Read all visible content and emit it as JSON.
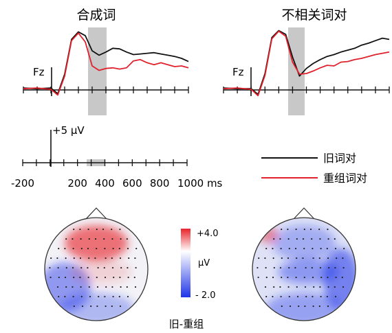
{
  "panels": [
    {
      "title": "合成词",
      "electrode": "Fz"
    },
    {
      "title": "不相关词对",
      "electrode": "Fz"
    }
  ],
  "colors": {
    "old": "#111111",
    "recombined": "#e0202a",
    "window": "#c8c8c8",
    "positive": "#e8232a",
    "negative": "#1f34e8"
  },
  "scale_bar": {
    "label": "+5 μV"
  },
  "time_axis": {
    "ticks": [
      "-200",
      "200",
      "400",
      "600",
      "800",
      "1000 ms"
    ]
  },
  "legend": {
    "old": "旧词对",
    "recombined": "重组词对"
  },
  "colorbar": {
    "max": "+4.0",
    "unit": "μV",
    "min": "- 2.0"
  },
  "topomap_caption": "旧-重组",
  "chart_data": [
    {
      "type": "line",
      "title": "合成词",
      "electrode": "Fz",
      "x_unit": "ms",
      "xlim": [
        -200,
        1000
      ],
      "shaded_window_ms": [
        300,
        420
      ],
      "series": [
        {
          "name": "旧词对",
          "x": [
            -200,
            -100,
            0,
            50,
            100,
            150,
            200,
            250,
            300,
            350,
            400,
            450,
            500,
            550,
            600,
            650,
            700,
            750,
            800,
            850,
            900,
            950,
            1000
          ],
          "y": [
            0.3,
            0.2,
            0.3,
            -0.6,
            2.5,
            8,
            9.2,
            8.6,
            6.2,
            5.5,
            6,
            6.6,
            6.5,
            6,
            5.6,
            5.7,
            5.8,
            5.9,
            5.7,
            5.5,
            5.3,
            5,
            4.5
          ]
        },
        {
          "name": "重组词对",
          "x": [
            -200,
            -100,
            0,
            50,
            100,
            150,
            200,
            250,
            300,
            350,
            400,
            450,
            500,
            550,
            600,
            650,
            700,
            750,
            800,
            850,
            900,
            950,
            1000
          ],
          "y": [
            0.2,
            0.3,
            0.1,
            -0.8,
            2.2,
            7.8,
            9,
            7.6,
            3.8,
            3.1,
            3.4,
            3.5,
            3.3,
            3.5,
            4.6,
            4.8,
            4.3,
            4.0,
            4.3,
            4.0,
            3.7,
            3.8,
            3.5
          ]
        }
      ]
    },
    {
      "type": "line",
      "title": "不相关词对",
      "electrode": "Fz",
      "x_unit": "ms",
      "xlim": [
        -200,
        1000
      ],
      "shaded_window_ms": [
        300,
        420
      ],
      "series": [
        {
          "name": "旧词对",
          "x": [
            -200,
            -100,
            0,
            50,
            100,
            150,
            200,
            250,
            300,
            350,
            400,
            450,
            500,
            550,
            600,
            650,
            700,
            750,
            800,
            850,
            900,
            950,
            1000
          ],
          "y": [
            0.3,
            0.2,
            0.2,
            -0.7,
            2.6,
            8.3,
            9.4,
            8.8,
            5.2,
            2.2,
            3.4,
            4.2,
            4.8,
            5.3,
            5.6,
            6,
            6.3,
            6.6,
            7.1,
            7.4,
            7.8,
            8.2,
            8.0
          ]
        },
        {
          "name": "重组词对",
          "x": [
            -200,
            -100,
            0,
            50,
            100,
            150,
            200,
            250,
            300,
            350,
            400,
            450,
            500,
            550,
            600,
            650,
            700,
            750,
            800,
            850,
            900,
            950,
            1000
          ],
          "y": [
            0.2,
            0.3,
            0.1,
            -0.9,
            2.3,
            8.1,
            9.3,
            8.5,
            4.4,
            2.5,
            2.6,
            3.0,
            3.5,
            3.9,
            3.8,
            4.4,
            4.5,
            4.8,
            5.0,
            5.3,
            5.6,
            5.8,
            6.0
          ]
        }
      ]
    },
    {
      "type": "heatmap",
      "title": "合成词",
      "caption": "旧-重组",
      "unit": "μV",
      "colorbar_range": [
        -2.0,
        4.0
      ],
      "regions": {
        "frontal": 2.0,
        "left_temporal": -1.5,
        "central": 0.5,
        "right_temporal": 0.0,
        "posterior": -1.0
      }
    },
    {
      "type": "heatmap",
      "title": "不相关词对",
      "caption": "旧-重组",
      "unit": "μV",
      "colorbar_range": [
        -2.0,
        4.0
      ],
      "regions": {
        "frontal": -1.0,
        "left_frontal": 1.5,
        "central": -1.3,
        "right_temporal": -1.8,
        "posterior": -1.2
      }
    }
  ]
}
